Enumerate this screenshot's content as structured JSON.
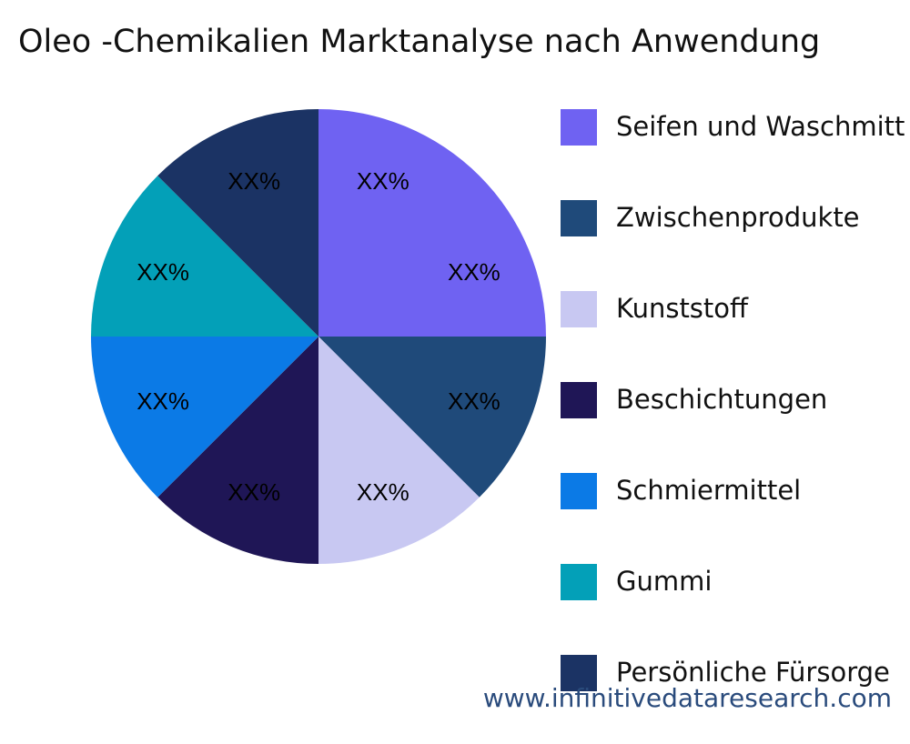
{
  "chart_data": {
    "type": "pie",
    "title": "Oleo -Chemikalien Marktanalyse nach Anwendung",
    "categories": [
      "Seifen und Waschmittel",
      "Zwischenprodukte",
      "Kunststoff",
      "Beschichtungen",
      "Schmiermittel",
      "Gummi",
      "Persönliche Fürsorge"
    ],
    "legend_labels": [
      "Seifen und Waschmitt",
      "Zwischenprodukte",
      "Kunststoff",
      "Beschichtungen",
      "Schmiermittel",
      "Gummi",
      "Persönliche Fürsorge"
    ],
    "values": [
      25,
      12.5,
      12.5,
      12.5,
      12.5,
      12.5,
      12.5
    ],
    "data_labels": [
      [
        "XX%",
        "XX%"
      ],
      [
        "XX%"
      ],
      [
        "XX%"
      ],
      [
        "XX%"
      ],
      [
        "XX%"
      ],
      [
        "XX%"
      ],
      [
        "XX%"
      ]
    ],
    "colors": [
      "#6f62f2",
      "#1f4a7a",
      "#c8c8f2",
      "#1f1656",
      "#0b7ae6",
      "#03a0b8",
      "#1b3364"
    ],
    "legend_placement": "right"
  },
  "watermark": "www.infinitivedataresearch.com"
}
